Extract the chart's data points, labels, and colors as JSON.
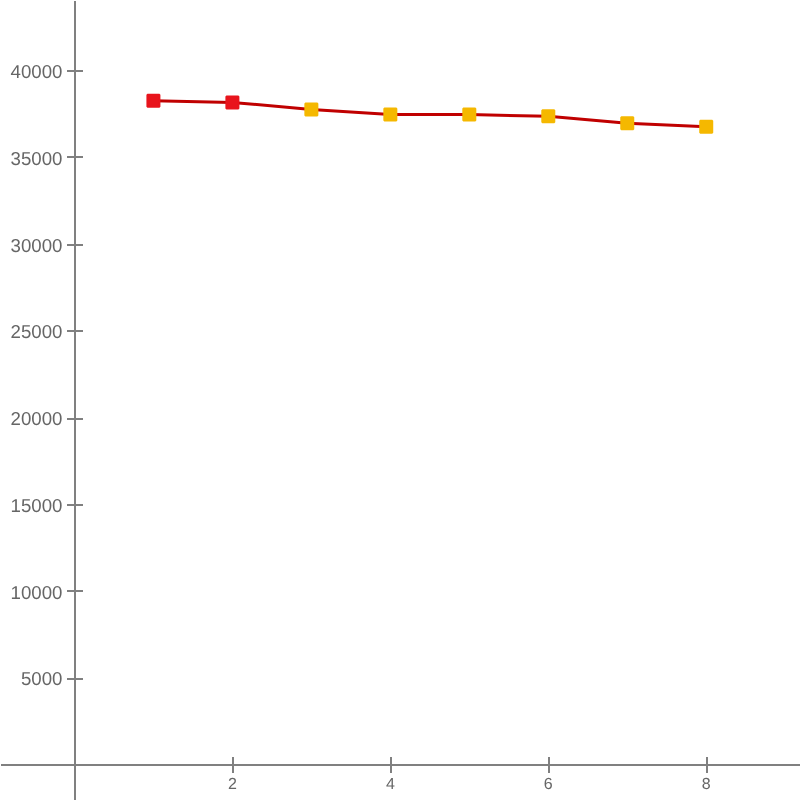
{
  "chart_data": {
    "type": "line",
    "x": [
      1,
      2,
      3,
      4,
      5,
      6,
      7,
      8
    ],
    "series": [
      {
        "color": "#c00000",
        "colors": [
          "#e8141c",
          "#e8141c",
          "#f5b800",
          "#f5b800",
          "#f5b800",
          "#f5b800",
          "#f5b800",
          "#f5b800"
        ],
        "values": [
          38300,
          38200,
          37800,
          37500,
          37500,
          37400,
          37000,
          36800
        ]
      }
    ],
    "xlim": [
      -0.93,
      9.2
    ],
    "ylim": [
      -2080,
      44050
    ],
    "xticks": [
      2,
      4,
      6,
      8
    ],
    "yticks": [
      5000,
      10000,
      15000,
      20000,
      25000,
      30000,
      35000,
      40000
    ],
    "marker": "square",
    "grid": false
  }
}
